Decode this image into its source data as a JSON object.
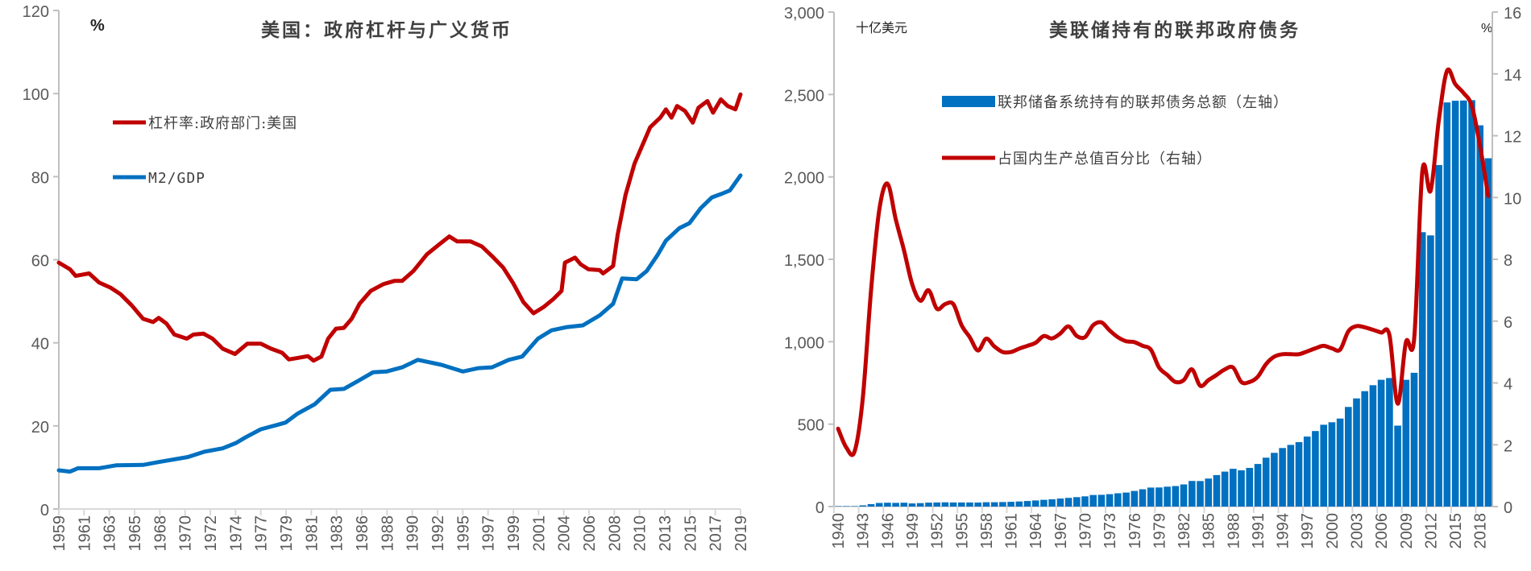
{
  "colors": {
    "red": "#C00000",
    "blue": "#0070C0",
    "axis": "#BFBFBF",
    "text": "#595959"
  },
  "chart_data": [
    {
      "type": "line",
      "title": "美国：政府杠杆与广义货币",
      "ylabel": "%",
      "ylim": [
        0,
        120
      ],
      "yticks": [
        0,
        20,
        40,
        60,
        80,
        100,
        120
      ],
      "xlim": [
        1959.0,
        2019.75
      ],
      "xtick_labels": [
        "1959",
        "1961",
        "1963",
        "1965",
        "1968",
        "1970",
        "1972",
        "1974",
        "1977",
        "1979",
        "1981",
        "1983",
        "1986",
        "1988",
        "1990",
        "1992",
        "1995",
        "1997",
        "1999",
        "2001",
        "2004",
        "2006",
        "2008",
        "2010",
        "2013",
        "2015",
        "2017",
        "2019"
      ],
      "legend_position": "top-left",
      "grid": false,
      "series": [
        {
          "name": "杠杆率:政府部门:美国",
          "color": "#C00000",
          "x": [
            1959.0,
            1960.0,
            1960.5,
            1961.7,
            1962.6,
            1963.6,
            1964.5,
            1965.5,
            1966.5,
            1967.4,
            1967.9,
            1968.6,
            1969.3,
            1970.4,
            1971.0,
            1971.9,
            1972.7,
            1973.6,
            1974.7,
            1975.8,
            1977.0,
            1977.9,
            1978.9,
            1979.5,
            1980.6,
            1981.2,
            1981.7,
            1982.4,
            1983.0,
            1983.7,
            1984.4,
            1985.1,
            1985.8,
            1986.8,
            1987.9,
            1988.9,
            1989.6,
            1990.6,
            1991.8,
            1992.9,
            1993.8,
            1994.5,
            1995.7,
            1996.7,
            1997.6,
            1998.6,
            1999.5,
            2000.4,
            2001.3,
            2002.2,
            2003.1,
            2003.8,
            2004.1,
            2005.0,
            2005.5,
            2006.2,
            2007.2,
            2007.5,
            2008.4,
            2008.8,
            2009.5,
            2010.3,
            2011.0,
            2011.7,
            2012.6,
            2013.1,
            2013.6,
            2014.1,
            2014.8,
            2015.5,
            2016.0,
            2016.8,
            2017.3,
            2018.0,
            2018.6,
            2019.3,
            2019.75
          ],
          "y": [
            59.3,
            57.7,
            56.1,
            56.7,
            54.5,
            53.3,
            51.7,
            49.0,
            45.8,
            45.0,
            46.0,
            44.6,
            42.0,
            41.0,
            42.0,
            42.2,
            41.0,
            38.6,
            37.3,
            39.8,
            39.8,
            38.6,
            37.6,
            36.0,
            36.5,
            36.8,
            35.7,
            36.7,
            41.0,
            43.4,
            43.6,
            45.8,
            49.4,
            52.5,
            54.1,
            54.9,
            54.9,
            57.3,
            61.3,
            63.7,
            65.6,
            64.4,
            64.4,
            63.2,
            60.9,
            58.1,
            54.3,
            49.8,
            47.1,
            48.6,
            50.6,
            52.5,
            59.3,
            60.5,
            58.9,
            57.7,
            57.5,
            56.7,
            58.5,
            66.0,
            75.6,
            83.1,
            87.5,
            91.9,
            94.2,
            96.2,
            94.2,
            97.0,
            95.8,
            93.0,
            96.6,
            98.2,
            95.4,
            98.6,
            97.0,
            96.2,
            99.8
          ]
        },
        {
          "name": "M2/GDP",
          "color": "#0070C0",
          "x": [
            1959.0,
            1960.0,
            1960.7,
            1962.6,
            1964.1,
            1966.5,
            1967.9,
            1970.5,
            1972.0,
            1973.6,
            1974.8,
            1975.6,
            1977.0,
            1978.4,
            1979.2,
            1980.3,
            1981.8,
            1983.2,
            1984.4,
            1985.6,
            1987.0,
            1988.2,
            1989.6,
            1991.0,
            1993.1,
            1995.0,
            1996.4,
            1997.6,
            1999.1,
            2000.3,
            2001.7,
            2002.9,
            2004.3,
            2005.7,
            2007.2,
            2008.4,
            2009.2,
            2010.5,
            2011.4,
            2012.4,
            2013.1,
            2014.3,
            2015.2,
            2016.2,
            2017.2,
            2018.1,
            2018.8,
            2019.75
          ],
          "y": [
            9.3,
            9.0,
            9.8,
            9.8,
            10.5,
            10.6,
            11.3,
            12.5,
            13.8,
            14.6,
            15.9,
            17.2,
            19.2,
            20.2,
            20.8,
            23.0,
            25.2,
            28.7,
            28.9,
            30.7,
            32.9,
            33.1,
            34.1,
            35.9,
            34.7,
            33.1,
            33.9,
            34.1,
            35.9,
            36.7,
            41.0,
            43.0,
            43.8,
            44.2,
            46.6,
            49.4,
            55.5,
            55.3,
            57.3,
            61.3,
            64.6,
            67.6,
            68.8,
            72.4,
            75.0,
            75.9,
            76.7,
            80.3
          ]
        }
      ]
    },
    {
      "type": "bar+line",
      "title": "美联储持有的联邦政府债务",
      "ylabel_left": "十亿美元",
      "ylabel_right": "%",
      "ylim_left": [
        0,
        3000
      ],
      "yticks_left": [
        "0",
        "500",
        "1,000",
        "1,500",
        "2,000",
        "2,500",
        "3,000"
      ],
      "ylim_right": [
        0,
        16
      ],
      "yticks_right": [
        "0",
        "2",
        "4",
        "6",
        "8",
        "10",
        "12",
        "14",
        "16"
      ],
      "categories": [
        1940,
        1941,
        1942,
        1943,
        1944,
        1945,
        1946,
        1947,
        1948,
        1949,
        1950,
        1951,
        1952,
        1953,
        1954,
        1955,
        1956,
        1957,
        1958,
        1959,
        1960,
        1961,
        1962,
        1963,
        1964,
        1965,
        1966,
        1967,
        1968,
        1969,
        1970,
        1971,
        1972,
        1973,
        1974,
        1975,
        1976,
        1977,
        1978,
        1979,
        1980,
        1981,
        1982,
        1983,
        1984,
        1985,
        1986,
        1987,
        1988,
        1989,
        1990,
        1991,
        1992,
        1993,
        1994,
        1995,
        1996,
        1997,
        1998,
        1999,
        2000,
        2001,
        2002,
        2003,
        2004,
        2005,
        2006,
        2007,
        2008,
        2009,
        2010,
        2011,
        2012,
        2013,
        2014,
        2015,
        2016,
        2017,
        2018,
        2019
      ],
      "xtick_labels": [
        "1940",
        "1943",
        "1946",
        "1949",
        "1952",
        "1955",
        "1958",
        "1961",
        "1964",
        "1967",
        "1970",
        "1973",
        "1976",
        "1979",
        "1982",
        "1985",
        "1988",
        "1991",
        "1994",
        "1997",
        "2000",
        "2003",
        "2006",
        "2009",
        "2012",
        "2015",
        "2018"
      ],
      "legend_position": "top-center",
      "grid": false,
      "series": [
        {
          "name": "联邦储备系统持有的联邦债务总额（左轴）",
          "axis": "left",
          "kind": "bar",
          "color": "#0070C0",
          "values": [
            2.2,
            2.2,
            2.6,
            7.2,
            14.9,
            21.8,
            23.3,
            22.6,
            23.3,
            18.9,
            20.8,
            23.8,
            24.7,
            25.9,
            24.9,
            24.8,
            24.9,
            24.2,
            26.3,
            26.6,
            27.4,
            28.9,
            30.8,
            33.6,
            37.1,
            40.8,
            44.3,
            49.1,
            52.9,
            57.2,
            62.1,
            70.2,
            71.4,
            75.2,
            80.6,
            85.0,
            94.7,
            105.0,
            115.5,
            115.6,
            120.8,
            124.5,
            134.5,
            155.5,
            155.1,
            169.8,
            190.9,
            212.0,
            229.2,
            220.1,
            234.4,
            258.6,
            296.4,
            325.7,
            355.2,
            374.1,
            390.9,
            424.5,
            458.2,
            496.6,
            511.4,
            534.1,
            604.2,
            656.1,
            700.3,
            736.4,
            768.9,
            779.6,
            491.1,
            769.2,
            811.7,
            1664.7,
            1645.3,
            2072.3,
            2451.7,
            2461.9,
            2463.5,
            2465.4,
            2312.9,
            2113.3
          ]
        },
        {
          "name": "占国内生产总值百分比（右轴）",
          "axis": "right",
          "kind": "line",
          "color": "#C00000",
          "values": [
            2.52,
            1.91,
            1.78,
            3.5,
            7.0,
            9.6,
            10.45,
            9.3,
            8.3,
            7.2,
            6.66,
            7.0,
            6.4,
            6.55,
            6.55,
            5.87,
            5.48,
            5.05,
            5.43,
            5.18,
            5.0,
            5.0,
            5.11,
            5.2,
            5.3,
            5.52,
            5.44,
            5.6,
            5.83,
            5.52,
            5.48,
            5.87,
            5.96,
            5.7,
            5.48,
            5.35,
            5.32,
            5.2,
            5.08,
            4.5,
            4.26,
            4.03,
            4.09,
            4.44,
            3.91,
            4.09,
            4.26,
            4.44,
            4.5,
            4.03,
            4.03,
            4.2,
            4.61,
            4.85,
            4.93,
            4.93,
            4.93,
            5.02,
            5.12,
            5.2,
            5.12,
            5.08,
            5.67,
            5.84,
            5.8,
            5.72,
            5.63,
            5.55,
            3.33,
            5.32,
            5.43,
            10.86,
            10.22,
            12.5,
            14.1,
            13.67,
            13.38,
            12.97,
            11.68,
            10.05
          ]
        }
      ]
    }
  ]
}
